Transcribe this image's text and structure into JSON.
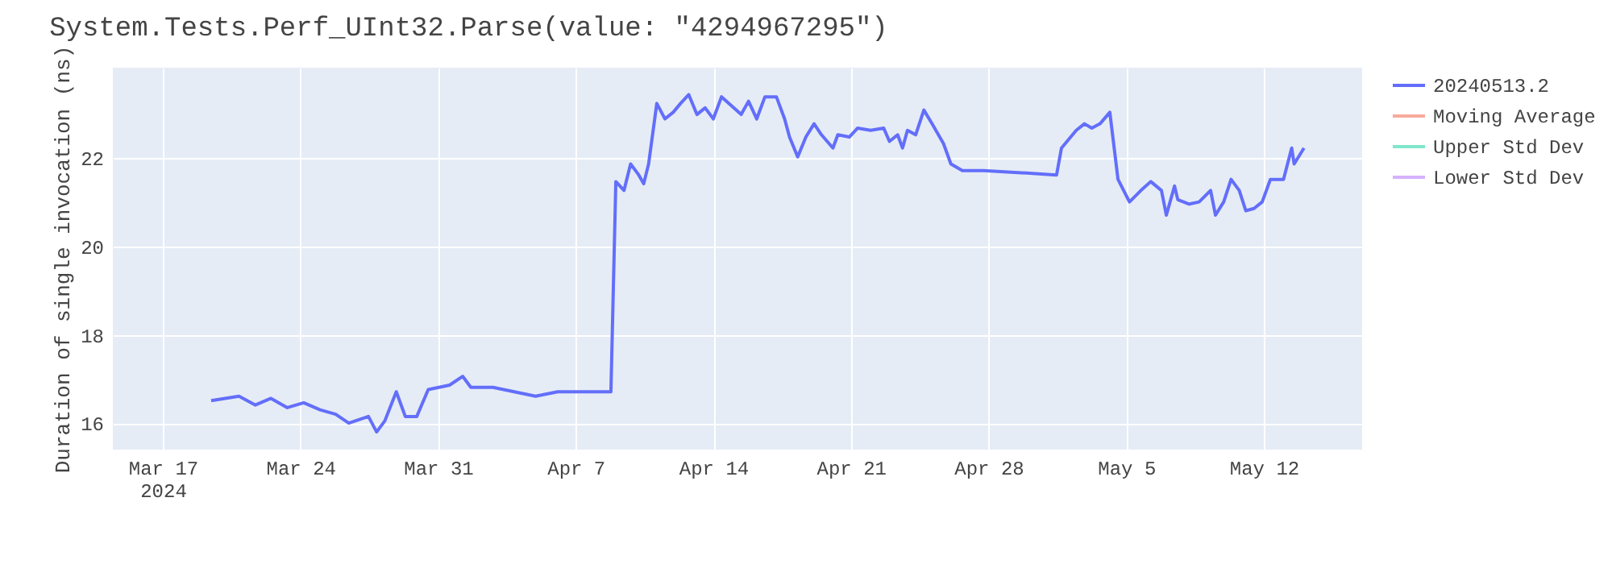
{
  "chart_data": {
    "type": "line",
    "title": "System.Tests.Perf_UInt32.Parse(value: \"4294967295\")",
    "ylabel": "Duration of single invocation (ns)",
    "xlim": [
      "2024-03-14T11:00",
      "2024-05-17T00:00"
    ],
    "xticks": [
      {
        "value": "2024-03-17",
        "label": "Mar 17\n2024"
      },
      {
        "value": "2024-03-24",
        "label": "Mar 24"
      },
      {
        "value": "2024-03-31",
        "label": "Mar 31"
      },
      {
        "value": "2024-04-07",
        "label": "Apr 7"
      },
      {
        "value": "2024-04-14",
        "label": "Apr 14"
      },
      {
        "value": "2024-04-21",
        "label": "Apr 21"
      },
      {
        "value": "2024-04-28",
        "label": "Apr 28"
      },
      {
        "value": "2024-05-05",
        "label": "May 5"
      },
      {
        "value": "2024-05-12",
        "label": "May 12"
      }
    ],
    "ylim": [
      15.4,
      24.05
    ],
    "yticks": [
      16,
      18,
      20,
      22
    ],
    "grid": true,
    "legend": "top right",
    "line_style": "solid",
    "series": [
      {
        "name": "20240513.2",
        "color": "#636efa",
        "x": [
          "2024-03-19T11:00",
          "2024-03-20T21:00",
          "2024-03-21T17:00",
          "2024-03-22T12:00",
          "2024-03-23T08:00",
          "2024-03-24T04:00",
          "2024-03-25T00:00",
          "2024-03-25T19:00",
          "2024-03-26T11:00",
          "2024-03-27T11:00",
          "2024-03-27T21:00",
          "2024-03-28T07:00",
          "2024-03-28T21:00",
          "2024-03-29T08:00",
          "2024-03-29T22:00",
          "2024-03-30T12:00",
          "2024-03-31T14:00",
          "2024-04-01T06:00",
          "2024-04-01T16:00",
          "2024-04-02T19:00",
          "2024-04-03T21:00",
          "2024-04-04T23:00",
          "2024-04-06T02:00",
          "2024-04-07T04:00",
          "2024-04-08T19:00",
          "2024-04-09T01:00",
          "2024-04-09T11:00",
          "2024-04-09T19:00",
          "2024-04-10T05:00",
          "2024-04-10T11:00",
          "2024-04-10T17:00",
          "2024-04-11T03:00",
          "2024-04-11T13:00",
          "2024-04-11T23:00",
          "2024-04-12T08:00",
          "2024-04-12T18:00",
          "2024-04-13T04:00",
          "2024-04-13T14:00",
          "2024-04-14T00:00",
          "2024-04-14T10:00",
          "2024-04-15T10:00",
          "2024-04-15T19:00",
          "2024-04-16T05:00",
          "2024-04-16T15:00",
          "2024-04-17T05:00",
          "2024-04-17T15:00",
          "2024-04-17T21:00",
          "2024-04-18T07:00",
          "2024-04-18T17:00",
          "2024-04-19T03:00",
          "2024-04-19T12:00",
          "2024-04-20T02:00",
          "2024-04-20T08:00",
          "2024-04-20T22:00",
          "2024-04-21T08:00",
          "2024-04-22T00:00",
          "2024-04-22T16:00",
          "2024-04-22T23:00",
          "2024-04-23T09:00",
          "2024-04-23T15:00",
          "2024-04-23T21:00",
          "2024-04-24T07:00",
          "2024-04-24T17:00",
          "2024-04-25T03:00",
          "2024-04-25T17:00",
          "2024-04-26T02:00",
          "2024-04-26T16:00",
          "2024-04-27T18:00",
          "2024-04-29T16:00",
          "2024-05-01T11:00",
          "2024-05-01T17:00",
          "2024-05-02T11:00",
          "2024-05-02T21:00",
          "2024-05-03T06:00",
          "2024-05-03T16:00",
          "2024-05-04T04:00",
          "2024-05-04T14:00",
          "2024-05-05T04:00",
          "2024-05-05T18:00",
          "2024-05-06T06:00",
          "2024-05-06T19:00",
          "2024-05-07T01:00",
          "2024-05-07T11:00",
          "2024-05-07T15:00",
          "2024-05-08T05:00",
          "2024-05-08T17:00",
          "2024-05-09T07:00",
          "2024-05-09T13:00",
          "2024-05-09T23:00",
          "2024-05-10T08:00",
          "2024-05-10T18:00",
          "2024-05-11T02:00",
          "2024-05-11T12:00",
          "2024-05-11T22:00",
          "2024-05-12T08:00",
          "2024-05-13T00:00",
          "2024-05-13T10:00",
          "2024-05-13T13:00",
          "2024-05-14T01:00"
        ],
        "values": [
          16.51,
          16.61,
          16.41,
          16.56,
          16.35,
          16.46,
          16.3,
          16.2,
          16.0,
          16.15,
          15.8,
          16.05,
          16.71,
          16.15,
          16.15,
          16.76,
          16.86,
          17.06,
          16.81,
          16.81,
          16.71,
          16.61,
          16.71,
          16.71,
          16.71,
          21.47,
          21.27,
          21.87,
          21.62,
          21.42,
          21.87,
          23.24,
          22.89,
          23.04,
          23.24,
          23.44,
          22.99,
          23.14,
          22.89,
          23.39,
          22.99,
          23.29,
          22.89,
          23.39,
          23.39,
          22.89,
          22.48,
          22.03,
          22.48,
          22.78,
          22.53,
          22.23,
          22.53,
          22.48,
          22.68,
          22.63,
          22.68,
          22.38,
          22.53,
          22.23,
          22.63,
          22.53,
          23.09,
          22.78,
          22.33,
          21.87,
          21.72,
          21.72,
          21.67,
          21.62,
          22.23,
          22.63,
          22.78,
          22.68,
          22.78,
          23.04,
          21.52,
          21.01,
          21.27,
          21.47,
          21.27,
          20.71,
          21.37,
          21.06,
          20.96,
          21.01,
          21.27,
          20.71,
          21.01,
          21.52,
          21.27,
          20.81,
          20.86,
          21.01,
          21.52,
          21.52,
          22.23,
          21.87,
          22.23
        ]
      },
      {
        "name": "Moving Average",
        "color": "#f7aa9d"
      },
      {
        "name": "Upper Std Dev",
        "color": "#80e6cb"
      },
      {
        "name": "Lower Std Dev",
        "color": "#d5b1fd"
      }
    ]
  }
}
